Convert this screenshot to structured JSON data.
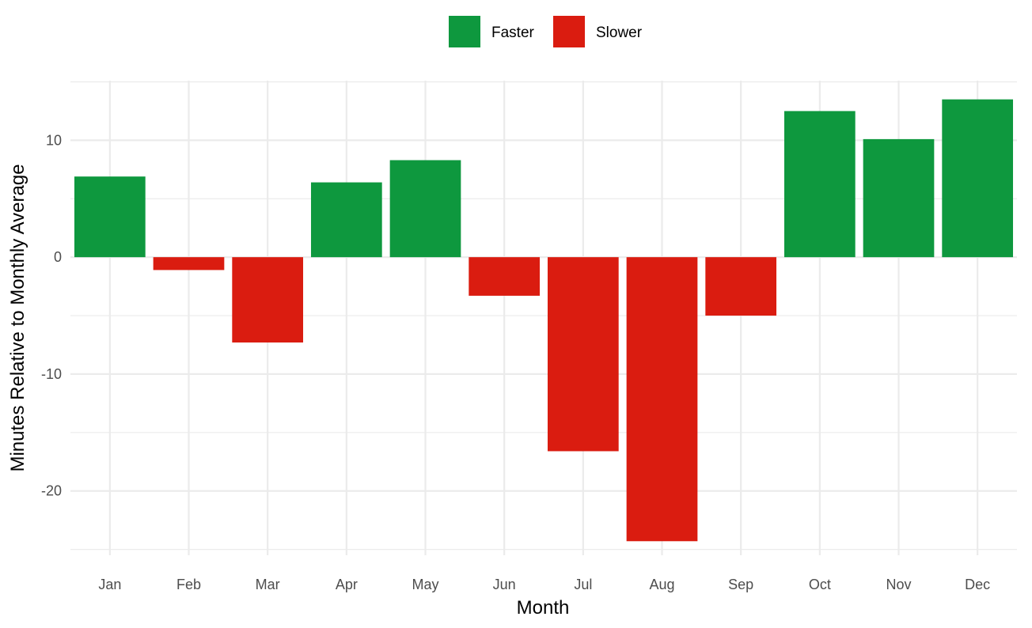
{
  "chart_data": {
    "type": "bar",
    "title": "",
    "xlabel": "Month",
    "ylabel": "Minutes Relative to Monthly Average",
    "categories": [
      "Jan",
      "Feb",
      "Mar",
      "Apr",
      "May",
      "Jun",
      "Jul",
      "Aug",
      "Sep",
      "Oct",
      "Nov",
      "Dec"
    ],
    "values": [
      6.9,
      -1.1,
      -7.3,
      6.4,
      8.3,
      -3.3,
      -16.6,
      -24.3,
      -5.0,
      12.5,
      10.1,
      13.5
    ],
    "groups": [
      "Faster",
      "Slower",
      "Slower",
      "Faster",
      "Faster",
      "Slower",
      "Slower",
      "Slower",
      "Slower",
      "Faster",
      "Faster",
      "Faster"
    ],
    "ylim": [
      -25.5,
      15.1
    ],
    "yticks": [
      -20,
      -10,
      0,
      10
    ],
    "grid": true,
    "legend": {
      "position": "top",
      "entries": [
        {
          "label": "Faster",
          "color": "#0e983e"
        },
        {
          "label": "Slower",
          "color": "#da1c10"
        }
      ]
    },
    "colors": {
      "Faster": "#0e983e",
      "Slower": "#da1c10",
      "grid": "#ebebeb"
    }
  }
}
